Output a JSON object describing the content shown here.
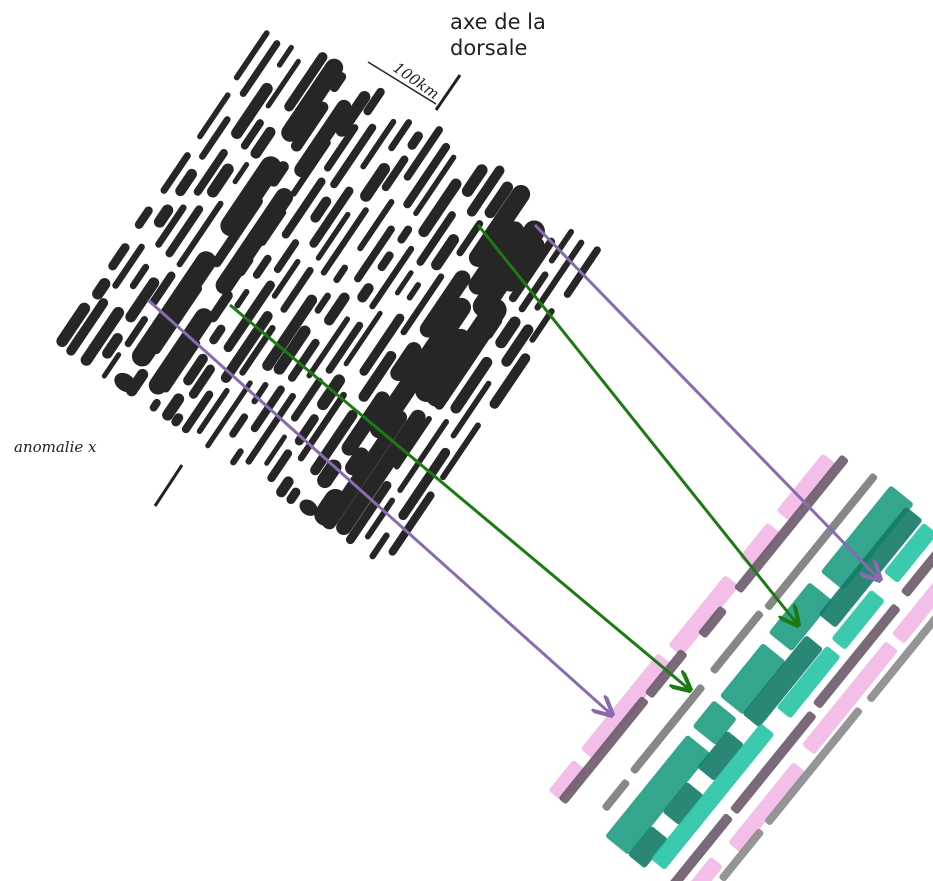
{
  "labels": {
    "axis": "axe de la dorsale",
    "scale": "100km",
    "anomaly": "anomalie x"
  }
}
